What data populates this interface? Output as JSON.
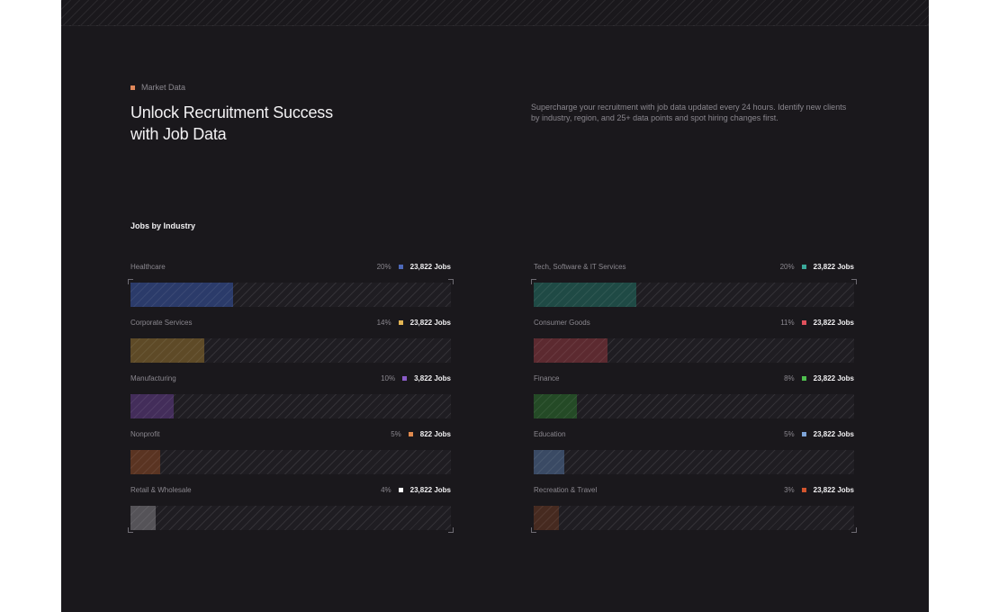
{
  "header": {
    "eyebrow": "Market Data",
    "eyebrow_color": "#e0875a",
    "title": "Unlock Recruitment Success with Job Data",
    "description": "Supercharge your recruitment with job data updated every 24 hours. Identify new clients by industry, region, and 25+ data points and spot hiring changes first."
  },
  "section": {
    "title": "Jobs by Industry"
  },
  "left_column": [
    {
      "label": "Healthcare",
      "percent": "20%",
      "jobs": "23,822 Jobs",
      "color": "#4d68b8",
      "fill_color": "#2b3b6a",
      "share": 0.32
    },
    {
      "label": "Corporate Services",
      "percent": "14%",
      "jobs": "23,822 Jobs",
      "color": "#e3b554",
      "fill_color": "#5e4a27",
      "share": 0.23
    },
    {
      "label": "Manufacturing",
      "percent": "10%",
      "jobs": "3,822 Jobs",
      "color": "#8a5cc7",
      "fill_color": "#432d5a",
      "share": 0.135
    },
    {
      "label": "Nonprofit",
      "percent": "5%",
      "jobs": "822 Jobs",
      "color": "#e08a4e",
      "fill_color": "#5a3422",
      "share": 0.092
    },
    {
      "label": "Retail & Wholesale",
      "percent": "4%",
      "jobs": "23,822 Jobs",
      "color": "#ffffff",
      "fill_color": "#555358",
      "share": 0.08
    }
  ],
  "right_column": [
    {
      "label": "Tech, Software & IT Services",
      "percent": "20%",
      "jobs": "23,822 Jobs",
      "color": "#3aa89a",
      "fill_color": "#1f4a45",
      "share": 0.32
    },
    {
      "label": "Consumer Goods",
      "percent": "11%",
      "jobs": "23,822 Jobs",
      "color": "#e0515c",
      "fill_color": "#5c2a30",
      "share": 0.23
    },
    {
      "label": "Finance",
      "percent": "8%",
      "jobs": "23,822 Jobs",
      "color": "#4fbf4f",
      "fill_color": "#244a26",
      "share": 0.135
    },
    {
      "label": "Education",
      "percent": "5%",
      "jobs": "23,822 Jobs",
      "color": "#7ea4d8",
      "fill_color": "#3a4a64",
      "share": 0.095
    },
    {
      "label": "Recreation & Travel",
      "percent": "3%",
      "jobs": "23,822 Jobs",
      "color": "#d2552e",
      "fill_color": "#462a20",
      "share": 0.08
    }
  ]
}
